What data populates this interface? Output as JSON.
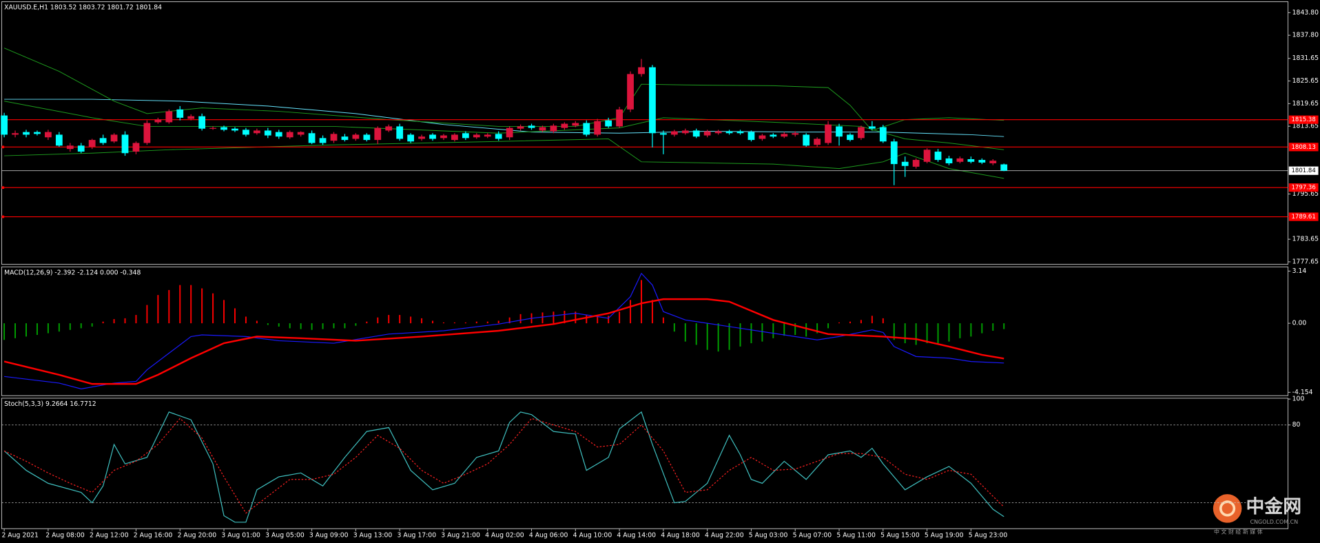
{
  "chart_data": [
    {
      "type": "candlestick",
      "title": "XAUUSD.E,H1  1803.52 1803.72 1801.72 1801.84",
      "categories": [
        "2 Aug 2021",
        null,
        null,
        null,
        "2 Aug 08:00",
        null,
        null,
        null,
        "2 Aug 12:00",
        null,
        null,
        null,
        "2 Aug 16:00",
        null,
        null,
        null,
        "2 Aug 20:00",
        null,
        null,
        null,
        "3 Aug 01:00",
        null,
        null,
        null,
        "3 Aug 05:00",
        null,
        null,
        null,
        "3 Aug 09:00",
        null,
        null,
        null,
        "3 Aug 13:00",
        null,
        null,
        null,
        "3 Aug 17:00",
        null,
        null,
        null,
        "3 Aug 21:00",
        null,
        null,
        null,
        "4 Aug 02:00",
        null,
        null,
        null,
        "4 Aug 06:00",
        null,
        null,
        null,
        "4 Aug 10:00",
        null,
        null,
        null,
        "4 Aug 14:00",
        null,
        null,
        null,
        "4 Aug 18:00",
        null,
        null,
        null,
        "4 Aug 22:00",
        null,
        null,
        null,
        "5 Aug 03:00",
        null,
        null,
        null,
        "5 Aug 07:00",
        null,
        null,
        null,
        "5 Aug 11:00",
        null,
        null,
        null,
        "5 Aug 15:00",
        null,
        null,
        null,
        "5 Aug 19:00",
        null,
        null,
        null,
        "5 Aug 23:00",
        null,
        null,
        null
      ],
      "open": [
        1816.5,
        1811.4,
        1812.1,
        1812.1,
        1810.7,
        1811.4,
        1807.6,
        1808.5,
        1808.2,
        1810.5,
        1809.6,
        1811.4,
        1806.9,
        1809.2,
        1814.7,
        1814.7,
        1818.1,
        1815.6,
        1816.3,
        1813.0,
        1813.4,
        1813.0,
        1812.7,
        1811.8,
        1812.5,
        1812.1,
        1810.7,
        1811.4,
        1811.8,
        1810.5,
        1809.8,
        1810.9,
        1810.3,
        1811.4,
        1810.0,
        1812.5,
        1813.6,
        1811.4,
        1810.3,
        1811.4,
        1810.5,
        1810.0,
        1811.8,
        1810.7,
        1810.9,
        1811.6,
        1810.7,
        1813.0,
        1813.8,
        1812.5,
        1812.3,
        1813.2,
        1813.8,
        1814.5,
        1811.4,
        1815.2,
        1813.6,
        1818.1,
        1827.5,
        1829.3,
        1811.8,
        1811.4,
        1811.8,
        1812.5,
        1811.2,
        1811.8,
        1812.3,
        1812.3,
        1812.1,
        1810.3,
        1811.4,
        1810.9,
        1811.4,
        1811.4,
        1808.7,
        1809.2,
        1813.6,
        1811.4,
        1810.5,
        1813.6,
        1813.4,
        1809.6,
        1804.2,
        1802.9,
        1804.2,
        1806.9,
        1805.1,
        1804.2,
        1804.9,
        1804.7,
        1803.8,
        1803.52
      ],
      "high": [
        1817.2,
        1812.5,
        1812.7,
        1812.5,
        1812.7,
        1812.1,
        1809.2,
        1809.2,
        1810.3,
        1811.4,
        1811.8,
        1812.3,
        1809.6,
        1815.2,
        1815.9,
        1818.1,
        1819.0,
        1816.8,
        1817.0,
        1813.6,
        1813.8,
        1813.4,
        1813.2,
        1813.0,
        1813.2,
        1812.7,
        1812.5,
        1812.3,
        1812.5,
        1811.2,
        1812.1,
        1811.6,
        1811.8,
        1811.8,
        1813.6,
        1814.1,
        1814.3,
        1811.8,
        1811.4,
        1811.8,
        1811.6,
        1811.8,
        1812.3,
        1811.8,
        1811.8,
        1812.3,
        1813.6,
        1814.1,
        1814.3,
        1813.8,
        1814.3,
        1814.7,
        1815.0,
        1815.2,
        1815.6,
        1815.9,
        1818.8,
        1828.2,
        1831.5,
        1829.9,
        1812.5,
        1812.7,
        1813.0,
        1813.0,
        1812.7,
        1812.7,
        1812.7,
        1812.7,
        1812.5,
        1811.6,
        1811.8,
        1812.1,
        1812.3,
        1811.8,
        1810.7,
        1815.0,
        1814.3,
        1811.8,
        1813.8,
        1815.0,
        1814.0,
        1810.3,
        1805.6,
        1805.1,
        1807.8,
        1807.6,
        1805.8,
        1805.6,
        1805.6,
        1805.1,
        1804.9,
        1803.72
      ],
      "low": [
        1810.7,
        1810.7,
        1810.7,
        1811.2,
        1810.0,
        1808.2,
        1806.9,
        1806.5,
        1807.6,
        1808.7,
        1809.2,
        1805.8,
        1806.2,
        1808.7,
        1814.3,
        1814.3,
        1815.2,
        1815.2,
        1812.5,
        1812.7,
        1812.3,
        1812.1,
        1810.9,
        1811.4,
        1810.5,
        1810.3,
        1810.3,
        1810.9,
        1808.9,
        1808.7,
        1809.2,
        1809.6,
        1809.8,
        1809.6,
        1808.9,
        1812.1,
        1809.8,
        1809.2,
        1809.8,
        1809.8,
        1810.0,
        1809.6,
        1810.0,
        1810.3,
        1810.5,
        1809.8,
        1810.0,
        1812.5,
        1812.7,
        1812.1,
        1811.8,
        1812.7,
        1813.4,
        1810.9,
        1810.9,
        1813.2,
        1813.2,
        1817.4,
        1826.8,
        1808.0,
        1806.2,
        1810.9,
        1811.4,
        1810.5,
        1810.7,
        1811.4,
        1811.4,
        1811.4,
        1809.6,
        1809.8,
        1810.5,
        1810.5,
        1810.9,
        1808.2,
        1808.2,
        1808.7,
        1808.5,
        1809.6,
        1810.0,
        1812.7,
        1809.2,
        1798.0,
        1800.2,
        1802.4,
        1803.8,
        1804.2,
        1803.3,
        1803.8,
        1803.8,
        1803.6,
        1803.3,
        1801.72
      ],
      "close": [
        1811.4,
        1811.8,
        1811.4,
        1811.6,
        1812.1,
        1808.5,
        1808.5,
        1806.9,
        1810.0,
        1809.2,
        1811.4,
        1806.5,
        1809.2,
        1814.5,
        1815.4,
        1817.6,
        1815.9,
        1816.3,
        1813.0,
        1813.2,
        1812.7,
        1812.5,
        1811.4,
        1812.5,
        1811.2,
        1810.9,
        1812.1,
        1812.1,
        1809.2,
        1809.2,
        1811.6,
        1810.0,
        1811.4,
        1810.0,
        1813.2,
        1813.6,
        1810.3,
        1809.6,
        1810.9,
        1810.3,
        1811.2,
        1811.4,
        1810.5,
        1811.4,
        1811.4,
        1810.3,
        1813.2,
        1813.6,
        1813.2,
        1813.4,
        1813.8,
        1814.3,
        1814.5,
        1811.4,
        1815.0,
        1813.6,
        1818.1,
        1827.5,
        1829.3,
        1811.8,
        1811.4,
        1812.3,
        1812.5,
        1810.9,
        1812.3,
        1812.3,
        1811.8,
        1811.8,
        1810.0,
        1811.2,
        1810.9,
        1811.6,
        1811.8,
        1808.5,
        1810.3,
        1814.1,
        1810.9,
        1810.0,
        1813.4,
        1813.0,
        1809.6,
        1803.6,
        1803.1,
        1804.7,
        1807.4,
        1804.7,
        1803.8,
        1805.1,
        1804.2,
        1804.0,
        1804.5,
        1801.84
      ],
      "up_color": "#dc143c",
      "down_color": "#00ffff",
      "overlays": [
        {
          "color": "#66e6ff",
          "x": [
            0,
            8,
            16,
            24,
            32,
            40,
            48,
            56,
            64,
            72,
            80,
            88,
            91
          ],
          "values": [
            1820.8,
            1820.8,
            1820.3,
            1819.0,
            1817.0,
            1814.1,
            1812.1,
            1811.8,
            1812.3,
            1812.1,
            1812.1,
            1811.4,
            1810.9
          ]
        },
        {
          "color": "#1e9e1e",
          "x": [
            0,
            5,
            10,
            13,
            18,
            25,
            35,
            45,
            52,
            56,
            58,
            62,
            70,
            75,
            77,
            79,
            82,
            86,
            91
          ],
          "values": [
            1834.4,
            1828.2,
            1820.3,
            1817.0,
            1818.5,
            1817.6,
            1815.4,
            1813.6,
            1813.6,
            1815.9,
            1824.8,
            1824.6,
            1824.4,
            1823.9,
            1819.2,
            1812.5,
            1815.4,
            1815.9,
            1815.2
          ]
        },
        {
          "color": "#1e9e1e",
          "x": [
            0,
            8,
            13,
            30,
            45,
            56,
            60,
            70,
            78,
            82,
            86,
            91
          ],
          "values": [
            1820.3,
            1815.9,
            1813.6,
            1813.6,
            1811.8,
            1813.2,
            1815.9,
            1814.7,
            1813.6,
            1810.3,
            1809.2,
            1807.4
          ]
        },
        {
          "color": "#1e9e1e",
          "x": [
            0,
            8,
            15,
            30,
            45,
            55,
            58,
            70,
            76,
            80,
            82,
            86,
            91
          ],
          "values": [
            1805.8,
            1806.5,
            1807.4,
            1808.7,
            1809.6,
            1810.3,
            1804.2,
            1803.6,
            1802.4,
            1804.2,
            1806.5,
            1802.4,
            1799.8
          ]
        }
      ],
      "levels": [
        1815.38,
        1808.13,
        1797.36,
        1789.61
      ],
      "level_color": "#ff0000",
      "last_price": 1801.84,
      "ylim": [
        1777.65,
        1843.8
      ],
      "yticks": [
        {
          "value": 1843.8,
          "label": "1843.80"
        },
        {
          "value": 1837.8,
          "label": "1837.80"
        },
        1831.65,
        1825.65,
        1819.65,
        1813.65,
        1795.65,
        1783.65,
        1777.65
      ]
    },
    {
      "type": "macd",
      "title": "MACD(12,26,9) -2.392 -2.124 0.000 -0.348",
      "histogram": [
        -1.0,
        -0.9,
        -0.8,
        -0.7,
        -0.6,
        -0.5,
        -0.4,
        -0.3,
        -0.2,
        0.1,
        0.25,
        0.3,
        0.5,
        1.1,
        1.7,
        2.0,
        2.3,
        2.3,
        2.1,
        1.8,
        1.4,
        0.9,
        0.4,
        0.15,
        -0.1,
        -0.2,
        -0.3,
        -0.35,
        -0.4,
        -0.35,
        -0.3,
        -0.3,
        -0.15,
        0.1,
        0.35,
        0.5,
        0.5,
        0.4,
        0.3,
        0.15,
        0.05,
        0.05,
        0.05,
        0.1,
        0.1,
        0.15,
        0.35,
        0.55,
        0.6,
        0.65,
        0.7,
        0.75,
        0.7,
        0.5,
        0.5,
        0.45,
        0.7,
        1.4,
        2.6,
        1.4,
        0.35,
        -0.5,
        -1.1,
        -1.3,
        -1.6,
        -1.7,
        -1.6,
        -1.4,
        -1.2,
        -1.1,
        -0.9,
        -0.75,
        -0.7,
        -0.8,
        -0.6,
        -0.3,
        0.05,
        0.1,
        0.2,
        0.45,
        0.3,
        -1.0,
        -1.2,
        -1.3,
        -1.2,
        -1.2,
        -1.1,
        -0.9,
        -0.8,
        -0.6,
        -0.45,
        -0.35
      ],
      "up_color": "#ff0000",
      "down_color": "#00a000",
      "series": [
        {
          "color": "#1a1aff",
          "x": [
            0,
            5,
            7,
            10,
            12,
            13,
            15,
            17,
            18,
            22,
            25,
            30,
            35,
            40,
            45,
            48,
            52,
            55,
            57,
            58,
            59,
            60,
            62,
            66,
            70,
            74,
            76,
            79,
            80,
            81,
            83,
            86,
            88,
            91
          ],
          "values": [
            -3.2,
            -3.6,
            -3.95,
            -3.6,
            -3.5,
            -2.8,
            -1.8,
            -0.8,
            -0.7,
            -0.8,
            -1.05,
            -1.2,
            -0.65,
            -0.45,
            -0.05,
            0.3,
            0.6,
            0.3,
            1.6,
            3.0,
            2.3,
            0.7,
            0.2,
            -0.2,
            -0.6,
            -1.0,
            -0.8,
            -0.4,
            -0.55,
            -1.4,
            -2.0,
            -2.1,
            -2.3,
            -2.392
          ]
        },
        {
          "color": "#ff0000",
          "width": 2,
          "x": [
            0,
            5,
            8,
            12,
            14,
            17,
            20,
            23,
            27,
            32,
            38,
            45,
            50,
            55,
            58,
            60,
            64,
            66,
            70,
            75,
            80,
            83,
            86,
            89,
            91
          ],
          "values": [
            -2.3,
            -3.1,
            -3.65,
            -3.65,
            -3.1,
            -2.1,
            -1.2,
            -0.8,
            -0.9,
            -1.05,
            -0.8,
            -0.45,
            -0.05,
            0.6,
            1.2,
            1.45,
            1.45,
            1.3,
            0.2,
            -0.65,
            -0.8,
            -0.95,
            -1.4,
            -1.9,
            -2.124
          ]
        }
      ],
      "ylim": [
        -4.154,
        3.14
      ],
      "yticks": [
        3.14,
        {
          "value": 0,
          "label": "0.00"
        },
        -4.154
      ]
    },
    {
      "type": "stochastic",
      "title": "Stoch(5,3,3) 9.2664 16.7712",
      "levels": [
        80,
        20
      ],
      "series": [
        {
          "color": "#3fbfbf",
          "x": [
            0,
            2,
            4,
            7,
            8,
            9,
            10,
            11,
            13,
            15,
            17,
            19,
            20,
            21,
            22,
            23,
            25,
            27,
            29,
            31,
            33,
            35,
            37,
            39,
            41,
            43,
            45,
            46,
            47,
            48,
            50,
            52,
            53,
            55,
            56,
            58,
            59,
            61,
            62,
            64,
            66,
            67,
            68,
            69,
            71,
            73,
            75,
            77,
            78,
            79,
            80,
            82,
            84,
            86,
            88,
            90,
            91
          ],
          "values": [
            60,
            45,
            35,
            28,
            20,
            33,
            65,
            50,
            55,
            90,
            84,
            50,
            10,
            5,
            5,
            30,
            40,
            43,
            33,
            55,
            75,
            78,
            45,
            30,
            35,
            55,
            60,
            82,
            90,
            88,
            75,
            73,
            45,
            55,
            77,
            90,
            65,
            20,
            21,
            35,
            72,
            57,
            38,
            35,
            52,
            38,
            57,
            60,
            55,
            62,
            50,
            30,
            40,
            48,
            35,
            15,
            9.27
          ]
        },
        {
          "color": "#ff2020",
          "dashed": true,
          "x": [
            0,
            2,
            4,
            6,
            8,
            10,
            12,
            14,
            16,
            18,
            20,
            22,
            24,
            26,
            28,
            30,
            32,
            34,
            36,
            38,
            40,
            42,
            44,
            46,
            48,
            50,
            52,
            54,
            56,
            58,
            60,
            62,
            64,
            66,
            68,
            70,
            72,
            74,
            76,
            78,
            80,
            82,
            84,
            86,
            88,
            90,
            91
          ],
          "values": [
            60,
            52,
            43,
            35,
            28,
            45,
            52,
            65,
            85,
            70,
            40,
            12,
            25,
            38,
            38,
            42,
            55,
            72,
            62,
            45,
            35,
            42,
            50,
            65,
            85,
            80,
            75,
            63,
            65,
            80,
            60,
            28,
            30,
            45,
            55,
            45,
            46,
            52,
            58,
            58,
            55,
            42,
            38,
            45,
            42,
            25,
            16.77
          ]
        }
      ],
      "ylim": [
        0,
        100
      ],
      "yticks": [
        100,
        80
      ]
    }
  ],
  "watermark": {
    "name": "中金网",
    "site": "CNGOLD.COM.CN",
    "slogan": "中 文 财 经 新 媒 体"
  }
}
